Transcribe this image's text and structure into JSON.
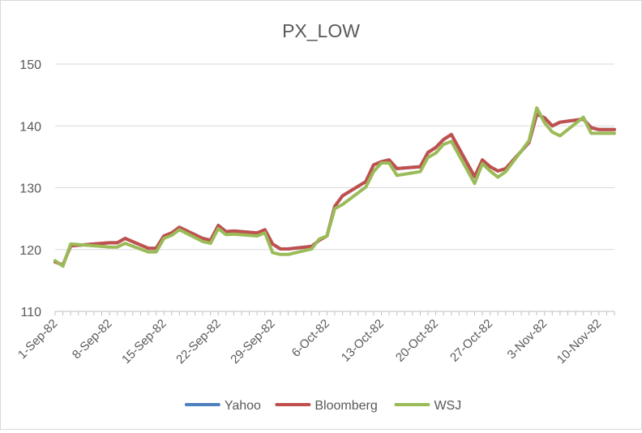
{
  "chart_data": {
    "type": "line",
    "title": "PX_LOW",
    "xlabel": "",
    "ylabel": "",
    "ylim": [
      110,
      150
    ],
    "yticks": [
      110,
      120,
      130,
      140,
      150
    ],
    "grid": true,
    "legend": "bottom",
    "xlim": [
      "1982-09-01",
      "1982-11-12"
    ],
    "xticks": [
      {
        "date": "1982-09-01",
        "label": "1-Sep-82"
      },
      {
        "date": "1982-09-08",
        "label": "8-Sep-82"
      },
      {
        "date": "1982-09-15",
        "label": "15-Sep-82"
      },
      {
        "date": "1982-09-22",
        "label": "22-Sep-82"
      },
      {
        "date": "1982-09-29",
        "label": "29-Sep-82"
      },
      {
        "date": "1982-10-06",
        "label": "6-Oct-82"
      },
      {
        "date": "1982-10-13",
        "label": "13-Oct-82"
      },
      {
        "date": "1982-10-20",
        "label": "20-Oct-82"
      },
      {
        "date": "1982-10-27",
        "label": "27-Oct-82"
      },
      {
        "date": "1982-11-03",
        "label": "3-Nov-82"
      },
      {
        "date": "1982-11-10",
        "label": "10-Nov-82"
      }
    ],
    "x": [
      "1982-09-01",
      "1982-09-02",
      "1982-09-03",
      "1982-09-07",
      "1982-09-08",
      "1982-09-09",
      "1982-09-10",
      "1982-09-13",
      "1982-09-14",
      "1982-09-15",
      "1982-09-16",
      "1982-09-17",
      "1982-09-20",
      "1982-09-21",
      "1982-09-22",
      "1982-09-23",
      "1982-09-24",
      "1982-09-27",
      "1982-09-28",
      "1982-09-29",
      "1982-09-30",
      "1982-10-01",
      "1982-10-04",
      "1982-10-05",
      "1982-10-06",
      "1982-10-07",
      "1982-10-08",
      "1982-10-11",
      "1982-10-12",
      "1982-10-13",
      "1982-10-14",
      "1982-10-15",
      "1982-10-18",
      "1982-10-19",
      "1982-10-20",
      "1982-10-21",
      "1982-10-22",
      "1982-10-25",
      "1982-10-26",
      "1982-10-27",
      "1982-10-28",
      "1982-10-29",
      "1982-11-01",
      "1982-11-02",
      "1982-11-03",
      "1982-11-04",
      "1982-11-05",
      "1982-11-08",
      "1982-11-09",
      "1982-11-10",
      "1982-11-11",
      "1982-11-12"
    ],
    "series": [
      {
        "name": "Yahoo",
        "color": "#4e81bd",
        "values": [
          118.0,
          117.5,
          120.6,
          121.0,
          121.1,
          121.1,
          121.8,
          120.2,
          120.2,
          122.2,
          122.7,
          123.6,
          121.8,
          121.5,
          123.9,
          122.9,
          123.0,
          122.7,
          123.2,
          120.9,
          120.1,
          120.1,
          120.5,
          121.5,
          122.2,
          127.0,
          128.7,
          131.0,
          133.7,
          134.2,
          134.5,
          133.1,
          133.4,
          135.7,
          136.5,
          137.8,
          138.6,
          131.8,
          134.5,
          133.4,
          132.7,
          133.1,
          137.3,
          141.9,
          141.3,
          140.0,
          140.6,
          141.1,
          139.7,
          139.4,
          139.4,
          139.4
        ]
      },
      {
        "name": "Bloomberg",
        "color": "#c0504d",
        "values": [
          118.0,
          117.5,
          120.6,
          121.0,
          121.1,
          121.1,
          121.8,
          120.2,
          120.2,
          122.2,
          122.7,
          123.6,
          121.8,
          121.5,
          123.9,
          122.9,
          123.0,
          122.7,
          123.2,
          120.9,
          120.1,
          120.1,
          120.5,
          121.5,
          122.2,
          127.0,
          128.7,
          131.0,
          133.7,
          134.2,
          134.5,
          133.1,
          133.4,
          135.7,
          136.5,
          137.8,
          138.6,
          131.8,
          134.5,
          133.4,
          132.7,
          133.1,
          137.3,
          141.9,
          141.3,
          140.0,
          140.6,
          141.1,
          139.7,
          139.4,
          139.4,
          139.4
        ]
      },
      {
        "name": "WSJ",
        "color": "#9bbb59",
        "values": [
          118.2,
          117.3,
          120.9,
          120.5,
          120.4,
          120.4,
          121.0,
          119.6,
          119.6,
          121.8,
          122.3,
          123.2,
          121.3,
          121.0,
          123.4,
          122.4,
          122.5,
          122.2,
          122.7,
          119.5,
          119.2,
          119.2,
          120.1,
          121.7,
          122.2,
          126.6,
          127.3,
          130.1,
          132.6,
          134.0,
          134.0,
          132.0,
          132.6,
          134.9,
          135.6,
          137.0,
          137.5,
          130.7,
          133.9,
          132.7,
          131.7,
          132.6,
          137.6,
          142.9,
          140.5,
          139.0,
          138.4,
          141.4,
          138.8,
          138.8,
          138.8,
          138.8
        ]
      }
    ]
  }
}
